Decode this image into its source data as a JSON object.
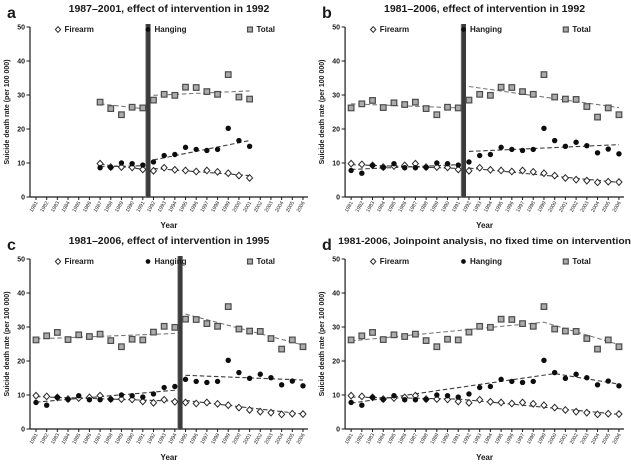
{
  "figure": {
    "background": "#ffffff",
    "colors": {
      "axis": "#1a1a1a",
      "text": "#1a1a1a",
      "firearm_fill": "#ffffff",
      "firearm_stroke": "#2a2a2a",
      "hanging_fill": "#0d0d0d",
      "total_fill": "#ababab",
      "total_stroke": "#4c4c4c",
      "trend_dark": "#3c3c3c",
      "trend_gray": "#787878",
      "intervention_bar": "#3b3b3b"
    }
  },
  "chart_data": [
    {
      "type": "scatter",
      "panel_label": "a",
      "title": "1987–2001, effect of intervention in 1992",
      "xlabel": "Year",
      "ylabel": "Suicide death rate (per 100 000)",
      "ylim": [
        0,
        50
      ],
      "yticks": [
        0,
        10,
        20,
        30,
        40,
        50
      ],
      "x_ticks": [
        1981,
        1982,
        1983,
        1984,
        1985,
        1986,
        1987,
        1988,
        1989,
        1990,
        1991,
        1992,
        1993,
        1994,
        1995,
        1996,
        1997,
        1998,
        1999,
        2000,
        2001,
        2002,
        2003,
        2004,
        2005,
        2006
      ],
      "intervention_x": 1991.5,
      "legend": [
        {
          "label": "Firearm",
          "marker": "diamond"
        },
        {
          "label": "Hanging",
          "marker": "circle"
        },
        {
          "label": "Total",
          "marker": "square"
        }
      ],
      "series": [
        {
          "name": "Firearm",
          "marker": "diamond",
          "x_start": 1987,
          "values": [
            9.8,
            8.8,
            8.8,
            8.7,
            8.1,
            7.7,
            8.6,
            8.0,
            7.8,
            7.5,
            7.8,
            7.4,
            7.0,
            6.3,
            5.6
          ]
        },
        {
          "name": "Hanging",
          "marker": "circle",
          "x_start": 1987,
          "values": [
            8.6,
            8.7,
            10.0,
            9.8,
            9.4,
            10.3,
            12.2,
            12.5,
            14.6,
            14.0,
            13.7,
            14.0,
            20.2,
            16.6,
            14.9
          ]
        },
        {
          "name": "Total",
          "marker": "square",
          "x_start": 1987,
          "values": [
            27.9,
            26.0,
            24.2,
            26.4,
            26.2,
            28.5,
            30.2,
            29.9,
            32.3,
            32.2,
            31.0,
            30.2,
            36.0,
            29.4,
            28.8
          ]
        }
      ],
      "trendlines": [
        {
          "series": "Firearm",
          "points": [
            [
              1987,
              9.6
            ],
            [
              1991,
              8.2
            ]
          ]
        },
        {
          "series": "Hanging",
          "points": [
            [
              1987,
              8.9
            ],
            [
              1991,
              9.2
            ]
          ]
        },
        {
          "series": "Total",
          "points": [
            [
              1987,
              27.4
            ],
            [
              1991,
              26.0
            ]
          ]
        },
        {
          "series": "Firearm",
          "points": [
            [
              1992,
              8.4
            ],
            [
              2001,
              6.3
            ]
          ]
        },
        {
          "series": "Hanging",
          "points": [
            [
              1992,
              10.9
            ],
            [
              2001,
              16.6
            ]
          ]
        },
        {
          "series": "Total",
          "points": [
            [
              1992,
              29.9
            ],
            [
              2001,
              31.2
            ]
          ]
        }
      ]
    },
    {
      "type": "scatter",
      "panel_label": "b",
      "title": "1981–2006, effect of intervention in 1992",
      "xlabel": "Year",
      "ylabel": "Suicide death rate (per 100 000)",
      "ylim": [
        0,
        50
      ],
      "yticks": [
        0,
        10,
        20,
        30,
        40,
        50
      ],
      "x_ticks": [
        1981,
        1982,
        1983,
        1984,
        1985,
        1986,
        1987,
        1988,
        1989,
        1990,
        1991,
        1992,
        1993,
        1994,
        1995,
        1996,
        1997,
        1998,
        1999,
        2000,
        2001,
        2002,
        2003,
        2004,
        2005,
        2006
      ],
      "intervention_x": 1991.5,
      "legend": [
        {
          "label": "Firearm",
          "marker": "diamond"
        },
        {
          "label": "Hanging",
          "marker": "circle"
        },
        {
          "label": "Total",
          "marker": "square"
        }
      ],
      "series": [
        {
          "name": "Firearm",
          "marker": "diamond",
          "x_start": 1981,
          "values": [
            9.8,
            9.6,
            9.3,
            8.8,
            9.1,
            9.3,
            9.8,
            8.8,
            8.8,
            8.7,
            8.1,
            7.7,
            8.6,
            8.0,
            7.8,
            7.5,
            7.8,
            7.4,
            7.0,
            6.3,
            5.6,
            5.1,
            4.8,
            4.3,
            4.5,
            4.4
          ]
        },
        {
          "name": "Hanging",
          "marker": "circle",
          "x_start": 1981,
          "values": [
            7.8,
            7.0,
            9.3,
            8.7,
            9.8,
            8.6,
            8.6,
            8.7,
            10.0,
            9.8,
            9.4,
            10.3,
            12.2,
            12.5,
            14.6,
            14.0,
            13.7,
            14.0,
            20.2,
            16.6,
            14.9,
            16.1,
            15.1,
            13.0,
            14.1,
            12.7
          ]
        },
        {
          "name": "Total",
          "marker": "square",
          "x_start": 1981,
          "values": [
            26.2,
            27.4,
            28.4,
            26.3,
            27.7,
            27.2,
            27.9,
            26.0,
            24.2,
            26.4,
            26.2,
            28.5,
            30.2,
            29.9,
            32.3,
            32.2,
            31.0,
            30.2,
            36.0,
            29.4,
            28.8,
            28.7,
            26.6,
            23.5,
            26.2,
            24.2
          ]
        }
      ],
      "trendlines": [
        {
          "series": "Firearm",
          "points": [
            [
              1981,
              9.5
            ],
            [
              1991,
              8.4
            ]
          ]
        },
        {
          "series": "Hanging",
          "points": [
            [
              1981,
              8.1
            ],
            [
              1991,
              9.5
            ]
          ]
        },
        {
          "series": "Total",
          "points": [
            [
              1981,
              27.4
            ],
            [
              1991,
              26.2
            ]
          ]
        },
        {
          "series": "Firearm",
          "points": [
            [
              1992,
              8.5
            ],
            [
              2006,
              4.3
            ]
          ]
        },
        {
          "series": "Hanging",
          "points": [
            [
              1992,
              13.4
            ],
            [
              2006,
              15.4
            ]
          ]
        },
        {
          "series": "Total",
          "points": [
            [
              1992,
              32.5
            ],
            [
              2006,
              26.3
            ]
          ]
        }
      ]
    },
    {
      "type": "scatter",
      "panel_label": "c",
      "title": "1981–2006, effect of intervention in 1995",
      "xlabel": "Year",
      "ylabel": "Suicide death rate (per 100 000)",
      "ylim": [
        0,
        50
      ],
      "yticks": [
        0,
        10,
        20,
        30,
        40,
        50
      ],
      "x_ticks": [
        1981,
        1982,
        1983,
        1984,
        1985,
        1986,
        1987,
        1988,
        1989,
        1990,
        1991,
        1992,
        1993,
        1994,
        1995,
        1996,
        1997,
        1998,
        1999,
        2000,
        2001,
        2002,
        2003,
        2004,
        2005,
        2006
      ],
      "intervention_x": 1994.5,
      "legend": [
        {
          "label": "Firearm",
          "marker": "diamond"
        },
        {
          "label": "Hanging",
          "marker": "circle"
        },
        {
          "label": "Total",
          "marker": "square"
        }
      ],
      "series": [
        {
          "name": "Firearm",
          "marker": "diamond",
          "x_start": 1981,
          "values": [
            9.8,
            9.6,
            9.3,
            8.8,
            9.1,
            9.3,
            9.8,
            8.8,
            8.8,
            8.7,
            8.1,
            7.7,
            8.6,
            8.0,
            7.8,
            7.5,
            7.8,
            7.4,
            7.0,
            6.3,
            5.6,
            5.1,
            4.8,
            4.3,
            4.5,
            4.4
          ]
        },
        {
          "name": "Hanging",
          "marker": "circle",
          "x_start": 1981,
          "values": [
            7.8,
            7.0,
            9.3,
            8.7,
            9.8,
            8.6,
            8.6,
            8.7,
            10.0,
            9.8,
            9.4,
            10.3,
            12.2,
            12.5,
            14.6,
            14.0,
            13.7,
            14.0,
            20.2,
            16.6,
            14.9,
            16.1,
            15.1,
            13.0,
            14.1,
            12.7
          ]
        },
        {
          "name": "Total",
          "marker": "square",
          "x_start": 1981,
          "values": [
            26.2,
            27.4,
            28.4,
            26.3,
            27.7,
            27.2,
            27.9,
            26.0,
            24.2,
            26.4,
            26.2,
            28.5,
            30.2,
            29.9,
            32.3,
            32.2,
            31.0,
            30.2,
            36.0,
            29.4,
            28.8,
            28.7,
            26.6,
            23.5,
            26.2,
            24.2
          ]
        }
      ],
      "trendlines": [
        {
          "series": "Firearm",
          "points": [
            [
              1981,
              9.5
            ],
            [
              1994,
              8.2
            ]
          ]
        },
        {
          "series": "Hanging",
          "points": [
            [
              1981,
              7.9
            ],
            [
              1994,
              11.4
            ]
          ]
        },
        {
          "series": "Total",
          "points": [
            [
              1981,
              26.5
            ],
            [
              1994,
              28.1
            ]
          ]
        },
        {
          "series": "Firearm",
          "points": [
            [
              1995,
              8.4
            ],
            [
              2006,
              4.4
            ]
          ]
        },
        {
          "series": "Hanging",
          "points": [
            [
              1995,
              15.8
            ],
            [
              2006,
              14.4
            ]
          ]
        },
        {
          "series": "Total",
          "points": [
            [
              1995,
              33.8
            ],
            [
              2006,
              24.7
            ]
          ]
        }
      ]
    },
    {
      "type": "scatter",
      "panel_label": "d",
      "title": "1981-2006, Joinpoint analysis, no fixed time on intervention",
      "xlabel": "Year",
      "ylabel": "Suicide death rate (per 100 000)",
      "ylim": [
        0,
        50
      ],
      "yticks": [
        0,
        10,
        20,
        30,
        40,
        50
      ],
      "x_ticks": [
        1981,
        1982,
        1983,
        1984,
        1985,
        1986,
        1987,
        1988,
        1989,
        1990,
        1991,
        1992,
        1993,
        1994,
        1995,
        1996,
        1997,
        1998,
        1999,
        2000,
        2001,
        2002,
        2003,
        2004,
        2005,
        2006
      ],
      "intervention_x": null,
      "legend": [
        {
          "label": "Firearm",
          "marker": "diamond"
        },
        {
          "label": "Hanging",
          "marker": "circle"
        },
        {
          "label": "Total",
          "marker": "square"
        }
      ],
      "series": [
        {
          "name": "Firearm",
          "marker": "diamond",
          "x_start": 1981,
          "values": [
            9.8,
            9.6,
            9.3,
            8.8,
            9.1,
            9.3,
            9.8,
            8.8,
            8.8,
            8.7,
            8.1,
            7.7,
            8.6,
            8.0,
            7.8,
            7.5,
            7.8,
            7.4,
            7.0,
            6.3,
            5.6,
            5.1,
            4.8,
            4.3,
            4.5,
            4.4
          ]
        },
        {
          "name": "Hanging",
          "marker": "circle",
          "x_start": 1981,
          "values": [
            7.8,
            7.0,
            9.3,
            8.7,
            9.8,
            8.6,
            8.6,
            8.7,
            10.0,
            9.8,
            9.4,
            10.3,
            12.2,
            12.5,
            14.6,
            14.0,
            13.7,
            14.0,
            20.2,
            16.6,
            14.9,
            16.1,
            15.1,
            13.0,
            14.1,
            12.7
          ]
        },
        {
          "name": "Total",
          "marker": "square",
          "x_start": 1981,
          "values": [
            26.2,
            27.4,
            28.4,
            26.3,
            27.7,
            27.2,
            27.9,
            26.0,
            24.2,
            26.4,
            26.2,
            28.5,
            30.2,
            29.9,
            32.3,
            32.2,
            31.0,
            30.2,
            36.0,
            29.4,
            28.8,
            28.7,
            26.6,
            23.5,
            26.2,
            24.2
          ]
        }
      ],
      "trendlines": [
        {
          "series": "Firearm",
          "points": [
            [
              1981,
              9.4
            ],
            [
              1991,
              8.8
            ],
            [
              2006,
              4.3
            ]
          ]
        },
        {
          "series": "Hanging",
          "points": [
            [
              1981,
              7.6
            ],
            [
              2000,
              16.3
            ],
            [
              2006,
              13.2
            ]
          ]
        },
        {
          "series": "Total",
          "points": [
            [
              1981,
              25.9
            ],
            [
              1999,
              31.4
            ],
            [
              2006,
              24.8
            ]
          ]
        }
      ]
    }
  ]
}
